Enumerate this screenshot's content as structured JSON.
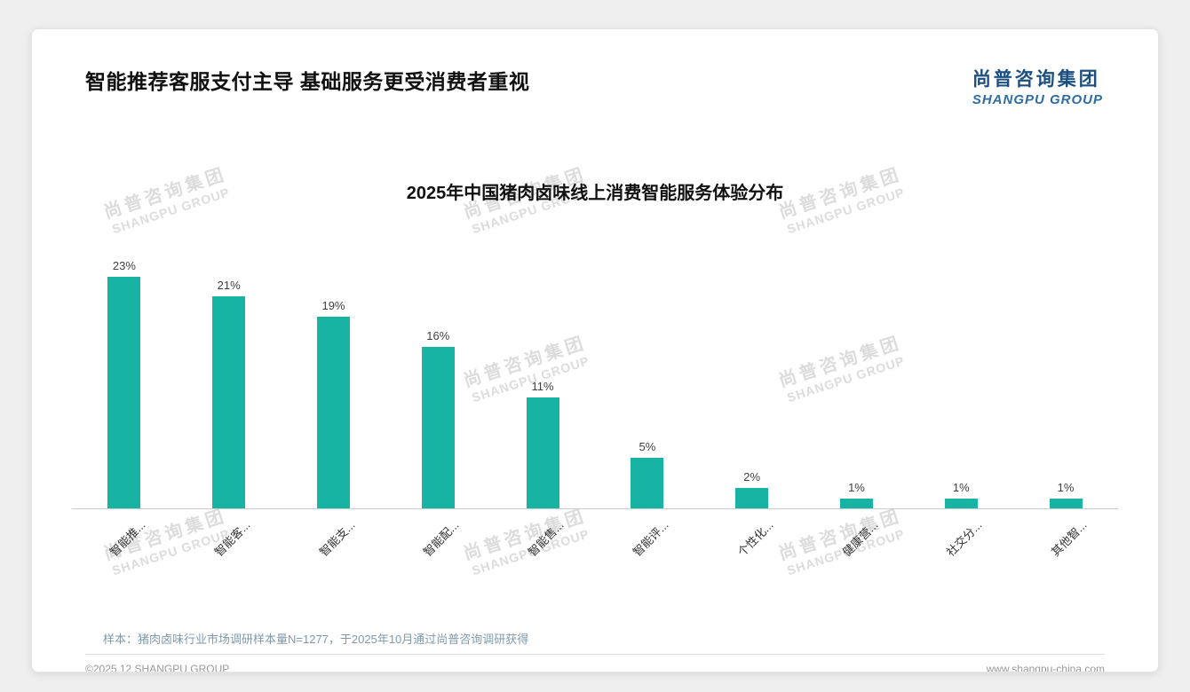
{
  "header": {
    "headline": "智能推荐客服支付主导 基础服务更受消费者重视",
    "logo_cn": "尚普咨询集团",
    "logo_en": "SHANGPU GROUP"
  },
  "watermark": {
    "cn": "尚普咨询集团",
    "en": "SHANGPU GROUP"
  },
  "chart_data": {
    "type": "bar",
    "title": "2025年中国猪肉卤味线上消费智能服务体验分布",
    "categories": [
      "智能推...",
      "智能客...",
      "智能支...",
      "智能配...",
      "智能售...",
      "智能评...",
      "个性化...",
      "健康营...",
      "社交分...",
      "其他智..."
    ],
    "values": [
      23,
      21,
      19,
      16,
      11,
      5,
      2,
      1,
      1,
      1
    ],
    "unit": "%",
    "bar_color": "#17b3a3",
    "ylim": [
      0,
      25
    ],
    "grid": false,
    "legend": false,
    "xlabel": "",
    "ylabel": ""
  },
  "note": "样本：猪肉卤味行业市场调研样本量N=1277，于2025年10月通过尚普咨询调研获得",
  "footer": {
    "left": "©2025.12 SHANGPU GROUP",
    "right": "www.shangpu-china.com"
  }
}
